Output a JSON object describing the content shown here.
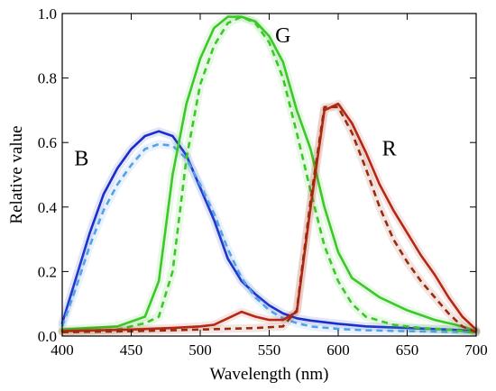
{
  "chart_data": {
    "type": "line",
    "xlabel": "Wavelength (nm)",
    "ylabel": "Relative value",
    "xlim": [
      400,
      700
    ],
    "ylim": [
      0,
      1.0
    ],
    "xticks": [
      400,
      450,
      500,
      550,
      600,
      650,
      700
    ],
    "yticks": [
      0.0,
      0.2,
      0.4,
      0.6,
      0.8,
      1.0
    ],
    "xtick_labels": [
      "400",
      "450",
      "500",
      "550",
      "600",
      "650",
      "700"
    ],
    "ytick_labels": [
      "0.0",
      "0.2",
      "0.4",
      "0.6",
      "0.8",
      "1.0"
    ],
    "grid": false,
    "legend": "none",
    "series": [
      {
        "name": "B",
        "key": "b-solid",
        "color": "#1a2dc8",
        "dash": "solid",
        "points": [
          [
            400,
            0.04
          ],
          [
            410,
            0.18
          ],
          [
            420,
            0.32
          ],
          [
            430,
            0.44
          ],
          [
            440,
            0.52
          ],
          [
            450,
            0.58
          ],
          [
            460,
            0.62
          ],
          [
            470,
            0.635
          ],
          [
            480,
            0.62
          ],
          [
            490,
            0.56
          ],
          [
            500,
            0.46
          ],
          [
            510,
            0.36
          ],
          [
            520,
            0.24
          ],
          [
            530,
            0.17
          ],
          [
            540,
            0.13
          ],
          [
            550,
            0.095
          ],
          [
            560,
            0.07
          ],
          [
            570,
            0.055
          ],
          [
            580,
            0.048
          ],
          [
            600,
            0.038
          ],
          [
            620,
            0.03
          ],
          [
            650,
            0.025
          ],
          [
            680,
            0.02
          ],
          [
            700,
            0.015
          ]
        ]
      },
      {
        "name": "",
        "key": "b-dashed",
        "color": "#55a0e6",
        "dash": "dashed",
        "points": [
          [
            400,
            0.03
          ],
          [
            410,
            0.15
          ],
          [
            420,
            0.28
          ],
          [
            430,
            0.39
          ],
          [
            440,
            0.47
          ],
          [
            450,
            0.53
          ],
          [
            460,
            0.58
          ],
          [
            470,
            0.595
          ],
          [
            480,
            0.59
          ],
          [
            490,
            0.55
          ],
          [
            500,
            0.47
          ],
          [
            510,
            0.38
          ],
          [
            520,
            0.27
          ],
          [
            530,
            0.18
          ],
          [
            540,
            0.12
          ],
          [
            550,
            0.08
          ],
          [
            560,
            0.055
          ],
          [
            570,
            0.04
          ],
          [
            580,
            0.03
          ],
          [
            600,
            0.022
          ],
          [
            620,
            0.018
          ],
          [
            650,
            0.015
          ],
          [
            680,
            0.013
          ],
          [
            700,
            0.012
          ]
        ]
      },
      {
        "name": "G",
        "key": "g-solid",
        "color": "#3cc828",
        "dash": "solid",
        "points": [
          [
            400,
            0.02
          ],
          [
            420,
            0.025
          ],
          [
            440,
            0.03
          ],
          [
            460,
            0.06
          ],
          [
            470,
            0.17
          ],
          [
            480,
            0.5
          ],
          [
            490,
            0.72
          ],
          [
            500,
            0.86
          ],
          [
            510,
            0.955
          ],
          [
            520,
            0.99
          ],
          [
            530,
            0.99
          ],
          [
            540,
            0.975
          ],
          [
            550,
            0.93
          ],
          [
            560,
            0.85
          ],
          [
            570,
            0.7
          ],
          [
            580,
            0.58
          ],
          [
            590,
            0.4
          ],
          [
            600,
            0.26
          ],
          [
            610,
            0.18
          ],
          [
            620,
            0.15
          ],
          [
            630,
            0.12
          ],
          [
            650,
            0.08
          ],
          [
            670,
            0.05
          ],
          [
            690,
            0.03
          ],
          [
            700,
            0.015
          ]
        ]
      },
      {
        "name": "",
        "key": "g-dashed",
        "color": "#3cc828",
        "dash": "dashed",
        "points": [
          [
            400,
            0.015
          ],
          [
            440,
            0.02
          ],
          [
            460,
            0.04
          ],
          [
            470,
            0.06
          ],
          [
            480,
            0.2
          ],
          [
            490,
            0.55
          ],
          [
            500,
            0.78
          ],
          [
            510,
            0.9
          ],
          [
            520,
            0.97
          ],
          [
            530,
            0.99
          ],
          [
            540,
            0.97
          ],
          [
            550,
            0.91
          ],
          [
            560,
            0.8
          ],
          [
            570,
            0.63
          ],
          [
            580,
            0.45
          ],
          [
            590,
            0.28
          ],
          [
            600,
            0.17
          ],
          [
            610,
            0.1
          ],
          [
            620,
            0.06
          ],
          [
            640,
            0.035
          ],
          [
            660,
            0.025
          ],
          [
            680,
            0.02
          ],
          [
            700,
            0.01
          ]
        ]
      },
      {
        "name": "R",
        "key": "r-solid",
        "color": "#b42814",
        "dash": "solid",
        "points": [
          [
            400,
            0.015
          ],
          [
            450,
            0.02
          ],
          [
            480,
            0.025
          ],
          [
            500,
            0.03
          ],
          [
            510,
            0.035
          ],
          [
            520,
            0.055
          ],
          [
            530,
            0.075
          ],
          [
            540,
            0.06
          ],
          [
            550,
            0.05
          ],
          [
            560,
            0.05
          ],
          [
            570,
            0.075
          ],
          [
            580,
            0.4
          ],
          [
            590,
            0.7
          ],
          [
            600,
            0.72
          ],
          [
            610,
            0.66
          ],
          [
            620,
            0.57
          ],
          [
            630,
            0.47
          ],
          [
            640,
            0.39
          ],
          [
            650,
            0.32
          ],
          [
            660,
            0.25
          ],
          [
            670,
            0.19
          ],
          [
            680,
            0.12
          ],
          [
            690,
            0.06
          ],
          [
            700,
            0.02
          ]
        ]
      },
      {
        "name": "",
        "key": "r-dashed",
        "color": "#9a2a10",
        "dash": "dashed",
        "points": [
          [
            400,
            0.012
          ],
          [
            450,
            0.015
          ],
          [
            500,
            0.02
          ],
          [
            540,
            0.025
          ],
          [
            560,
            0.03
          ],
          [
            570,
            0.08
          ],
          [
            580,
            0.42
          ],
          [
            590,
            0.71
          ],
          [
            600,
            0.71
          ],
          [
            610,
            0.63
          ],
          [
            620,
            0.52
          ],
          [
            630,
            0.4
          ],
          [
            640,
            0.3
          ],
          [
            650,
            0.23
          ],
          [
            660,
            0.17
          ],
          [
            670,
            0.12
          ],
          [
            680,
            0.07
          ],
          [
            690,
            0.03
          ],
          [
            700,
            0.012
          ]
        ]
      }
    ],
    "annotations": [
      {
        "text": "B",
        "x": 414,
        "y": 0.53
      },
      {
        "text": "G",
        "x": 560,
        "y": 0.91
      },
      {
        "text": "R",
        "x": 637,
        "y": 0.56
      }
    ]
  }
}
